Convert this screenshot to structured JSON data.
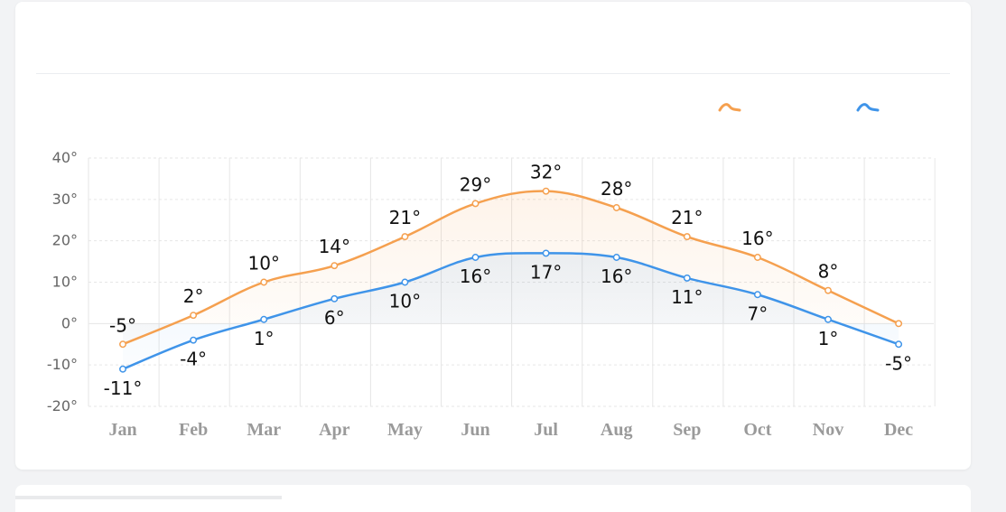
{
  "legend": {
    "high_icon": "line-marker-icon",
    "low_icon": "line-marker-icon"
  },
  "colors": {
    "high": "#f5a04f",
    "low": "#3f94e9",
    "grid": "#e6e6e6"
  },
  "chart_data": {
    "type": "line",
    "categories": [
      "Jan",
      "Feb",
      "Mar",
      "Apr",
      "May",
      "Jun",
      "Jul",
      "Aug",
      "Sep",
      "Oct",
      "Nov",
      "Dec"
    ],
    "series": [
      {
        "key": "high",
        "values": [
          -5,
          2,
          10,
          14,
          21,
          29,
          32,
          28,
          21,
          16,
          8,
          0
        ],
        "labels": [
          "-5°",
          "2°",
          "10°",
          "14°",
          "21°",
          "29°",
          "32°",
          "28°",
          "21°",
          "16°",
          "8°",
          ""
        ]
      },
      {
        "key": "low",
        "values": [
          -11,
          -4,
          1,
          6,
          10,
          16,
          17,
          16,
          11,
          7,
          1,
          -5
        ],
        "labels": [
          "-11°",
          "-4°",
          "1°",
          "6°",
          "10°",
          "16°",
          "17°",
          "16°",
          "11°",
          "7°",
          "1°",
          "-5°"
        ]
      }
    ],
    "y_ticks": [
      "40°",
      "30°",
      "20°",
      "10°",
      "0°",
      "-10°",
      "-20°"
    ],
    "y_tick_values": [
      40,
      30,
      20,
      10,
      0,
      -10,
      -20
    ],
    "ylim": [
      -20,
      40
    ],
    "grid": true,
    "smooth": true,
    "area_fill": true
  }
}
